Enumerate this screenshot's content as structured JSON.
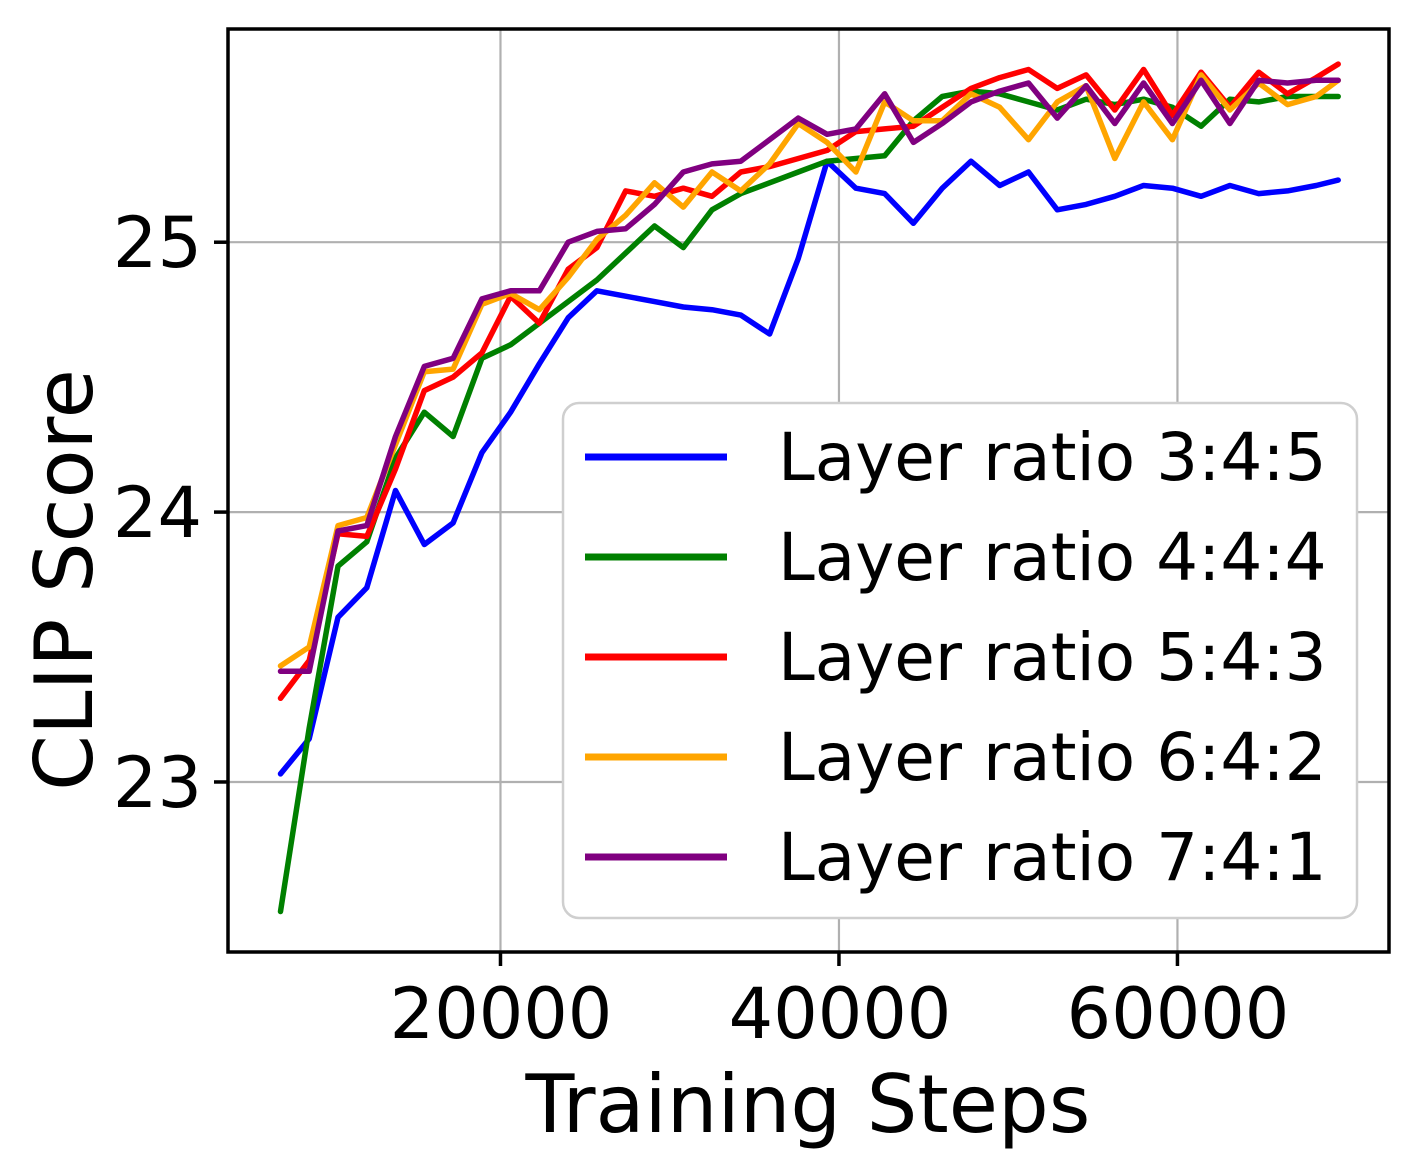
{
  "chart_data": {
    "type": "line",
    "title": "",
    "xlabel": "Training Steps",
    "ylabel": "CLIP Score",
    "x_ticks": [
      20000,
      40000,
      60000
    ],
    "x_tick_labels": [
      "20000",
      "40000",
      "60000"
    ],
    "y_ticks": [
      23,
      24,
      25
    ],
    "y_tick_labels": [
      "23",
      "24",
      "25"
    ],
    "xlim": [
      3900,
      72500
    ],
    "ylim": [
      22.37,
      25.79
    ],
    "grid": true,
    "grid_color": "#b0b0b0",
    "background": "#ffffff",
    "legend_position": "inside-center-right",
    "x": [
      7000,
      8700,
      10400,
      12100,
      13800,
      15500,
      17200,
      18900,
      20600,
      22300,
      24000,
      25700,
      27400,
      29100,
      30800,
      32500,
      34200,
      35900,
      37600,
      39300,
      41000,
      42700,
      44400,
      46100,
      47800,
      49500,
      51200,
      52900,
      54600,
      56300,
      58000,
      59700,
      61400,
      63100,
      64800,
      66500,
      68200,
      69500
    ],
    "series": [
      {
        "name": "Layer ratio 3:4:5",
        "color": "#0000ff",
        "values": [
          23.03,
          23.16,
          23.61,
          23.72,
          24.08,
          23.88,
          23.96,
          24.22,
          24.37,
          24.55,
          24.72,
          24.82,
          24.8,
          24.78,
          24.76,
          24.75,
          24.73,
          24.66,
          24.94,
          25.3,
          25.2,
          25.18,
          25.07,
          25.2,
          25.3,
          25.21,
          25.26,
          25.12,
          25.14,
          25.17,
          25.21,
          25.2,
          25.17,
          25.21,
          25.18,
          25.19,
          25.21,
          25.23
        ]
      },
      {
        "name": "Layer ratio 4:4:4",
        "color": "#008000",
        "values": [
          22.52,
          23.2,
          23.8,
          23.89,
          24.2,
          24.37,
          24.28,
          24.57,
          24.62,
          24.7,
          24.78,
          24.86,
          24.96,
          25.06,
          24.98,
          25.12,
          25.18,
          25.22,
          25.26,
          25.3,
          25.31,
          25.32,
          25.45,
          25.54,
          25.56,
          25.55,
          25.52,
          25.49,
          25.53,
          25.51,
          25.53,
          25.5,
          25.43,
          25.53,
          25.52,
          25.54,
          25.54,
          25.54
        ]
      },
      {
        "name": "Layer ratio 5:4:3",
        "color": "#ff0000",
        "values": [
          23.31,
          23.45,
          23.92,
          23.91,
          24.16,
          24.45,
          24.5,
          24.59,
          24.8,
          24.7,
          24.9,
          24.98,
          25.19,
          25.17,
          25.2,
          25.17,
          25.26,
          25.28,
          25.31,
          25.34,
          25.41,
          25.42,
          25.43,
          25.5,
          25.57,
          25.61,
          25.64,
          25.57,
          25.62,
          25.49,
          25.64,
          25.47,
          25.63,
          25.5,
          25.63,
          25.55,
          25.61,
          25.66
        ]
      },
      {
        "name": "Layer ratio 6:4:2",
        "color": "#ffa500",
        "values": [
          23.43,
          23.5,
          23.95,
          23.98,
          24.25,
          24.52,
          24.53,
          24.77,
          24.81,
          24.75,
          24.87,
          25.01,
          25.1,
          25.22,
          25.13,
          25.26,
          25.19,
          25.29,
          25.44,
          25.37,
          25.26,
          25.52,
          25.45,
          25.45,
          25.55,
          25.5,
          25.38,
          25.52,
          25.58,
          25.31,
          25.52,
          25.38,
          25.62,
          25.49,
          25.59,
          25.51,
          25.54,
          25.6
        ]
      },
      {
        "name": "Layer ratio 7:4:1",
        "color": "#800080",
        "values": [
          23.41,
          23.41,
          23.93,
          23.95,
          24.28,
          24.54,
          24.57,
          24.79,
          24.82,
          24.82,
          25.0,
          25.04,
          25.05,
          25.14,
          25.26,
          25.29,
          25.3,
          25.38,
          25.46,
          25.4,
          25.42,
          25.55,
          25.37,
          25.44,
          25.52,
          25.56,
          25.59,
          25.46,
          25.58,
          25.44,
          25.59,
          25.44,
          25.6,
          25.44,
          25.6,
          25.59,
          25.6,
          25.6
        ]
      }
    ]
  }
}
